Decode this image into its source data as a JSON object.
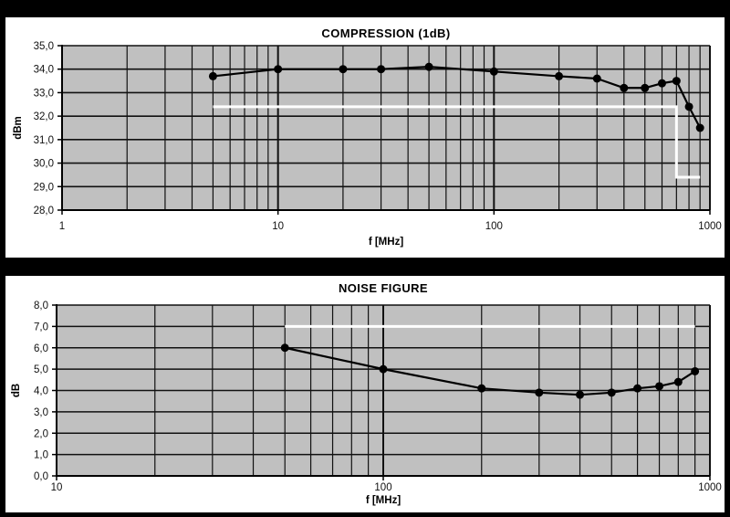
{
  "page": {
    "background": "#000000",
    "panel_background": "#ffffff"
  },
  "chart_data": [
    {
      "type": "line",
      "title": "COMPRESSION (1dB)",
      "xlabel": "f [MHz]",
      "ylabel": "dBm",
      "x_scale": "log",
      "xlim": [
        1,
        1000
      ],
      "ylim": [
        28,
        35
      ],
      "y_tick_step": 1,
      "grid": true,
      "legend": "none",
      "plot_bg": "#c0c0c0",
      "x_tick_values": [
        1,
        10,
        100,
        1000
      ],
      "x_tick_labels": [
        "1",
        "10",
        "100",
        "1000"
      ],
      "y_tick_labels": [
        "35,0",
        "34,0",
        "33,0",
        "32,0",
        "31,0",
        "30,0",
        "29,0",
        "28,0"
      ],
      "series": [
        {
          "name": "compression-1dB",
          "color": "#000000",
          "x": [
            5,
            10,
            20,
            30,
            50,
            100,
            200,
            300,
            400,
            500,
            600,
            700,
            800,
            900
          ],
          "y": [
            33.7,
            34.0,
            34.0,
            34.0,
            34.1,
            33.9,
            33.7,
            33.6,
            33.2,
            33.2,
            33.4,
            33.5,
            32.4,
            31.5
          ]
        }
      ],
      "limit_line": {
        "color": "#ffffff",
        "points": [
          [
            5,
            32.4
          ],
          [
            700,
            32.4
          ],
          [
            700,
            29.4
          ],
          [
            900,
            29.4
          ]
        ]
      }
    },
    {
      "type": "line",
      "title": "NOISE FIGURE",
      "xlabel": "f [MHz]",
      "ylabel": "dB",
      "x_scale": "log",
      "xlim": [
        10,
        1000
      ],
      "ylim": [
        0,
        8
      ],
      "y_tick_step": 1,
      "grid": true,
      "legend": "none",
      "plot_bg": "#c0c0c0",
      "x_tick_values": [
        10,
        100,
        1000
      ],
      "x_tick_labels": [
        "10",
        "100",
        "1000"
      ],
      "y_tick_labels": [
        "8,0",
        "7,0",
        "6,0",
        "5,0",
        "4,0",
        "3,0",
        "2,0",
        "1,0",
        "0,0"
      ],
      "series": [
        {
          "name": "noise-figure",
          "color": "#000000",
          "x": [
            50,
            100,
            200,
            300,
            400,
            500,
            600,
            700,
            800,
            900
          ],
          "y": [
            6.0,
            5.0,
            4.1,
            3.9,
            3.8,
            3.9,
            4.1,
            4.2,
            4.4,
            4.9
          ]
        }
      ],
      "limit_line": {
        "color": "#ffffff",
        "points": [
          [
            50,
            7.0
          ],
          [
            900,
            7.0
          ]
        ]
      }
    }
  ]
}
